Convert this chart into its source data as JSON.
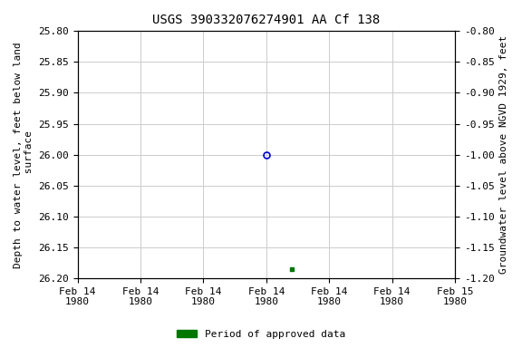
{
  "title": "USGS 390332076274901 AA Cf 138",
  "ylabel_left": "Depth to water level, feet below land\n surface",
  "ylabel_right": "Groundwater level above NGVD 1929, feet",
  "ylim_left": [
    25.8,
    26.2
  ],
  "ylim_right": [
    -0.8,
    -1.2
  ],
  "y_ticks_left": [
    25.8,
    25.85,
    25.9,
    25.95,
    26.0,
    26.05,
    26.1,
    26.15,
    26.2
  ],
  "y_ticks_right": [
    -0.8,
    -0.85,
    -0.9,
    -0.95,
    -1.0,
    -1.05,
    -1.1,
    -1.15,
    -1.2
  ],
  "x_tick_positions": [
    0,
    1,
    2,
    3,
    4,
    5,
    6
  ],
  "x_tick_labels": [
    "Feb 14\n1980",
    "Feb 14\n1980",
    "Feb 14\n1980",
    "Feb 14\n1980",
    "Feb 14\n1980",
    "Feb 14\n1980",
    "Feb 15\n1980"
  ],
  "data_point_open": {
    "x": 3.0,
    "value": 26.0,
    "color": "#0000cc"
  },
  "data_point_filled": {
    "x": 3.4,
    "value": 26.185,
    "color": "#007700"
  },
  "background_color": "#ffffff",
  "grid_color": "#cccccc",
  "title_fontsize": 10,
  "axis_label_fontsize": 8,
  "tick_fontsize": 8,
  "legend_label": "Period of approved data",
  "legend_color": "#007700"
}
